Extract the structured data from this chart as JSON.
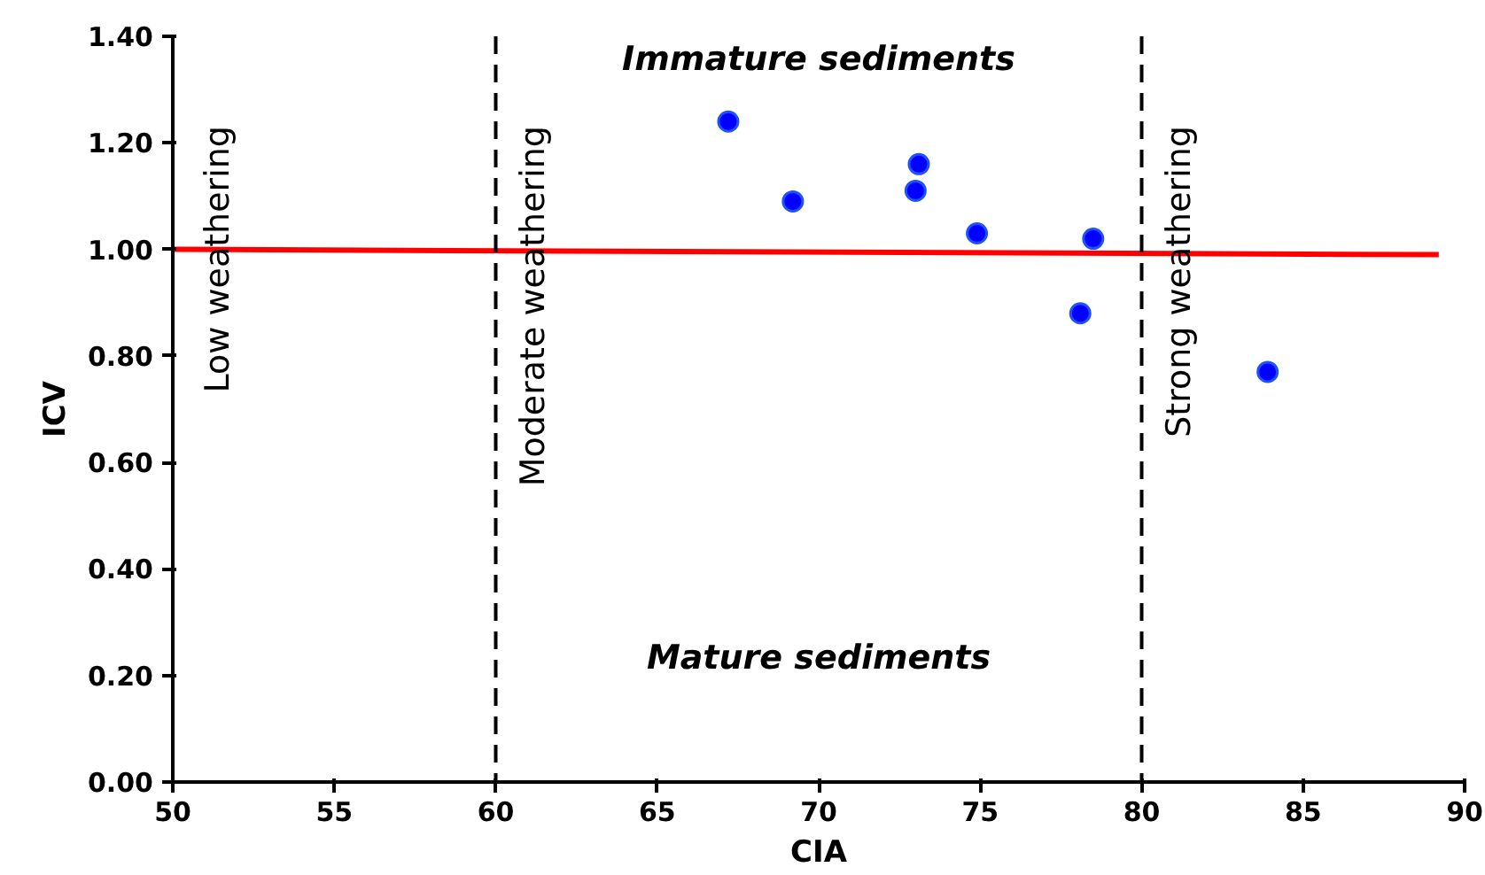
{
  "chart_data": {
    "type": "scatter",
    "xlabel": "CIA",
    "ylabel": "ICV",
    "xlim": [
      50,
      90
    ],
    "xticks": [
      50,
      55,
      60,
      65,
      70,
      75,
      80,
      85,
      90
    ],
    "ylim": [
      0,
      1.4
    ],
    "yticks": [
      {
        "value": 0,
        "label": "0.00"
      },
      {
        "value": 0.2,
        "label": "0.20"
      },
      {
        "value": 0.4,
        "label": "0.40"
      },
      {
        "value": 0.6,
        "label": "0.60"
      },
      {
        "value": 0.8,
        "label": "0.80"
      },
      {
        "value": 1.0,
        "label": "1.00"
      },
      {
        "value": 1.2,
        "label": "1.20"
      },
      {
        "value": 1.4,
        "label": "1.40"
      }
    ],
    "grid": false,
    "series": [
      {
        "color": "#0000ff",
        "marker": "circle",
        "x": [
          67.2,
          69.2,
          73.0,
          73.1,
          74.9,
          78.5,
          78.1,
          83.9
        ],
        "values": [
          1.24,
          1.09,
          1.11,
          1.16,
          1.03,
          1.02,
          0.88,
          0.77
        ]
      },
      {
        "type": "line",
        "color": "#ff0000",
        "x": [
          50,
          89.2
        ],
        "values": [
          1.0,
          0.99
        ]
      }
    ],
    "ref_lines": [
      {
        "axis": "x",
        "value": 60,
        "label": "Moderate weathering",
        "color": "#000000",
        "line_style": "dashed"
      },
      {
        "axis": "x",
        "value": 80,
        "label": "Strong weathering",
        "color": "#000000",
        "line_style": "dashed"
      }
    ],
    "annotations": [
      "Low weathering",
      "Immature sediments",
      "Mature sediments"
    ]
  }
}
